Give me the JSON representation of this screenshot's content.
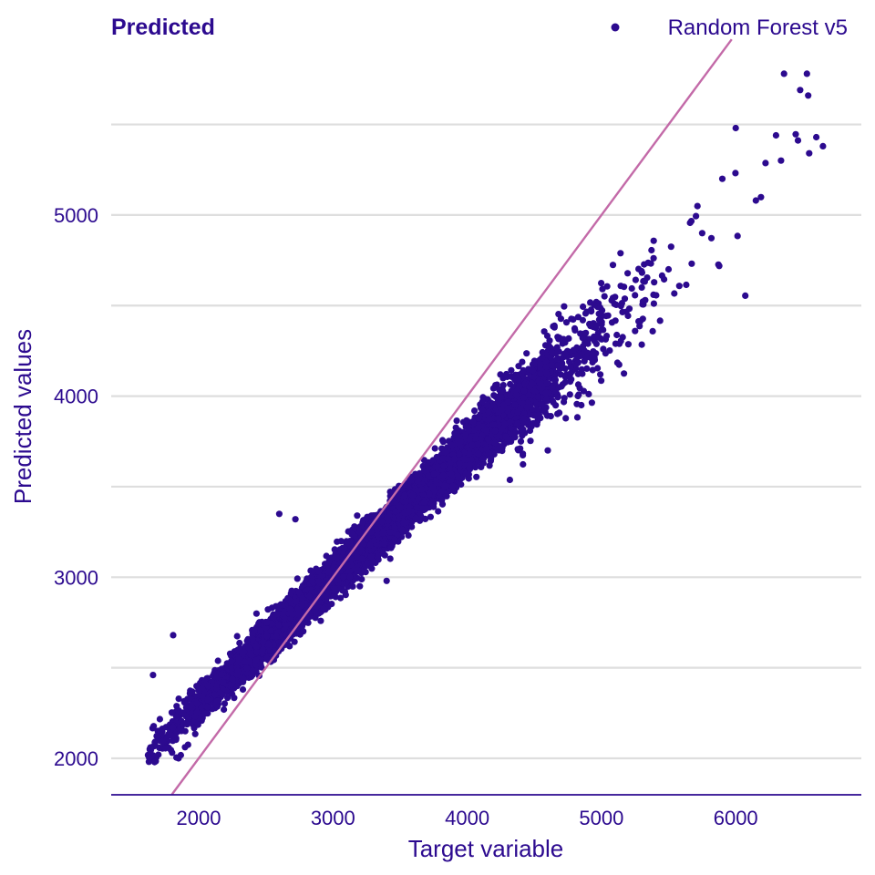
{
  "chart_data": {
    "type": "scatter",
    "title": "Predicted",
    "xlabel": "Target variable",
    "ylabel": "Predicted values",
    "xlim": [
      1370,
      6960
    ],
    "ylim": [
      1800,
      5900
    ],
    "x_ticks": [
      2000,
      3000,
      4000,
      5000,
      6000
    ],
    "y_ticks": [
      2000,
      3000,
      4000,
      5000
    ],
    "y_gridlines": [
      2000,
      2500,
      3000,
      3500,
      4000,
      4500,
      5000,
      5500
    ],
    "grid": "horizontal",
    "legend_position": "top-right",
    "reference_line": "y = x",
    "colors": {
      "points": "#2c0a8f",
      "reference_line": "#c36aa8",
      "grid": "#dedede",
      "text": "#2c0a8f"
    },
    "series": [
      {
        "name": "Random Forest v5",
        "trend": {
          "slope": 0.7,
          "intercept": 900
        },
        "x_range": [
          1620,
          6650
        ],
        "point_count": 8000,
        "points": [
          [
            1640,
            2060
          ],
          [
            1660,
            2460
          ],
          [
            1700,
            2020
          ],
          [
            1810,
            2680
          ],
          [
            1850,
            2000
          ],
          [
            2600,
            3350
          ],
          [
            2720,
            3320
          ],
          [
            3200,
            2950
          ],
          [
            3400,
            2980
          ],
          [
            4150,
            3950
          ],
          [
            4400,
            3750
          ],
          [
            4600,
            3700
          ],
          [
            4850,
            3950
          ],
          [
            4950,
            4200
          ],
          [
            5300,
            4600
          ],
          [
            5500,
            4700
          ],
          [
            5750,
            4900
          ],
          [
            5900,
            5200
          ],
          [
            6000,
            5480
          ],
          [
            6150,
            5080
          ],
          [
            6300,
            5440
          ],
          [
            6360,
            5780
          ],
          [
            6480,
            5690
          ],
          [
            6530,
            5780
          ],
          [
            6540,
            5660
          ],
          [
            6600,
            5430
          ],
          [
            6650,
            5380
          ]
        ]
      }
    ]
  }
}
